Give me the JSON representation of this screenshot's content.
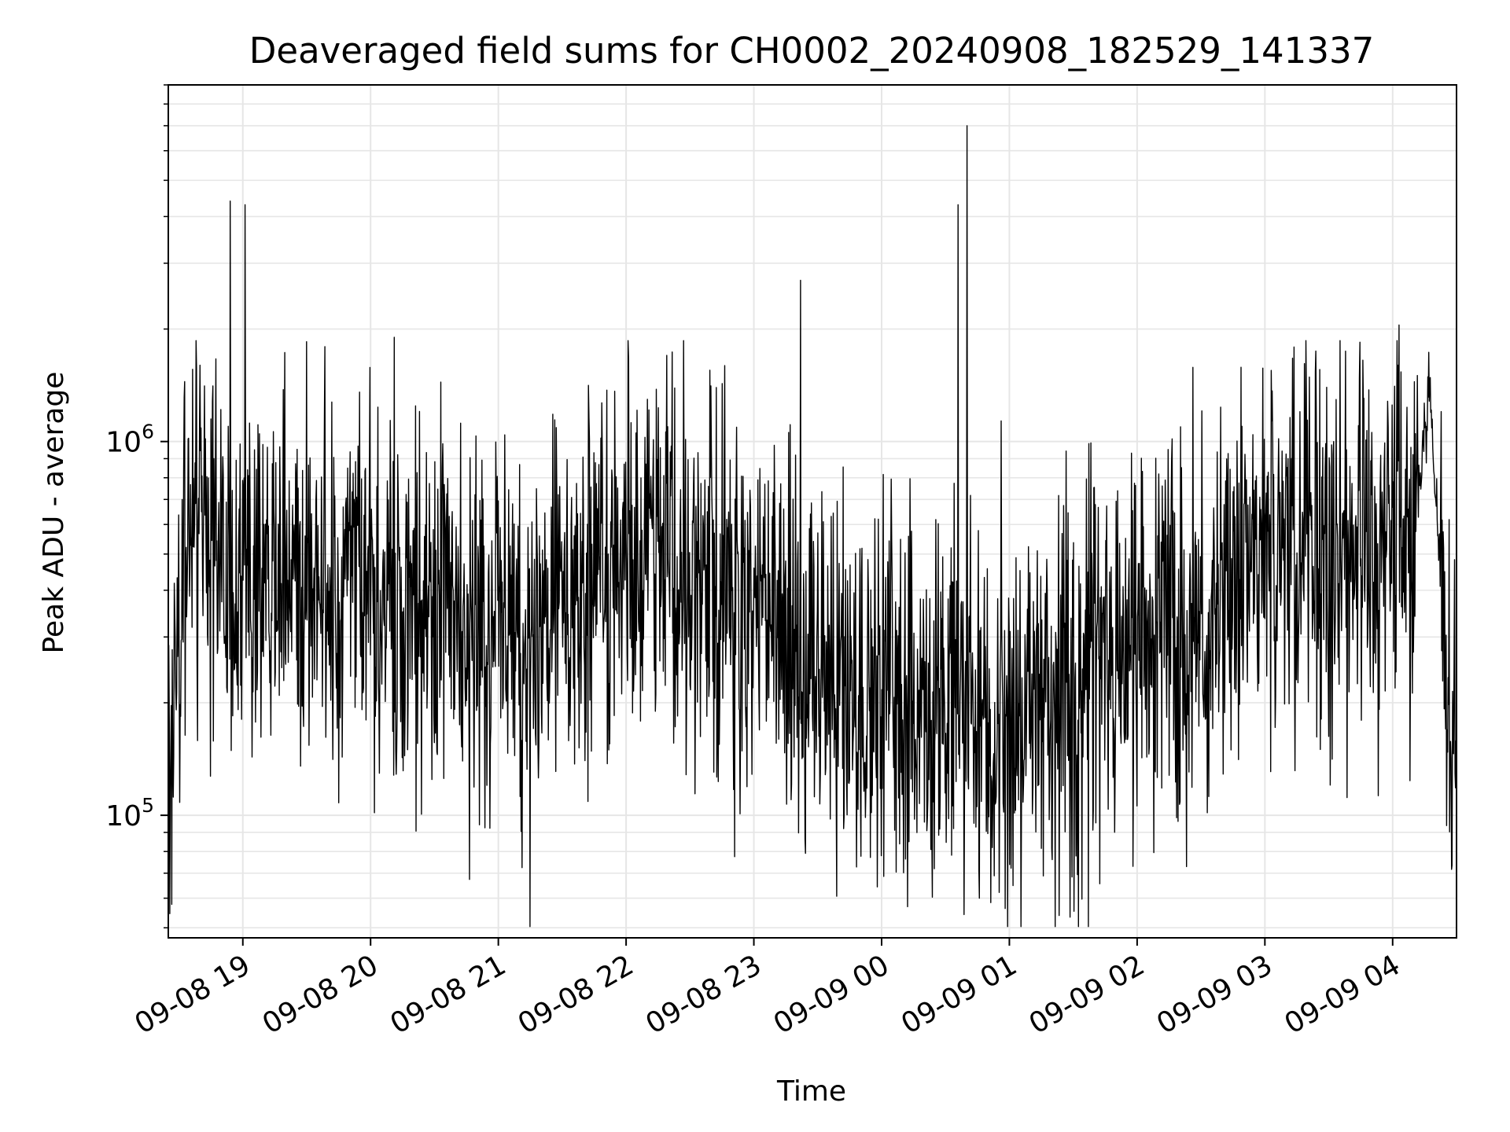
{
  "chart_data": {
    "type": "line",
    "title": "Deaveraged field sums for CH0002_20240908_182529_141337",
    "xlabel": "Time",
    "ylabel": "Peak ADU - average",
    "x_ticks": [
      "09-08 19",
      "09-08 20",
      "09-08 21",
      "09-08 22",
      "09-08 23",
      "09-09 00",
      "09-09 01",
      "09-09 02",
      "09-09 03",
      "09-09 04"
    ],
    "y_ticks": [
      {
        "base": "10",
        "exp": "5",
        "value": 100000
      },
      {
        "base": "10",
        "exp": "6",
        "value": 1000000
      }
    ],
    "y_scale": "log",
    "ylim": [
      47000,
      9000000
    ],
    "xlim": [
      "2024-09-08 18:25",
      "2024-09-09 04:30"
    ],
    "grid": true,
    "line_color": "#000000",
    "grid_color": "#e6e6e6",
    "series": [
      {
        "x_start": "2024-09-08 18:25",
        "x_end": "2024-09-09 04:30",
        "trend_knots": [
          [
            "2024-09-08 18:25",
            150000
          ],
          [
            "2024-09-08 18:35",
            600000
          ],
          [
            "2024-09-08 19:00",
            450000
          ],
          [
            "2024-09-08 20:00",
            400000
          ],
          [
            "2024-09-08 20:45",
            300000
          ],
          [
            "2024-09-08 21:15",
            300000
          ],
          [
            "2024-09-08 22:00",
            500000
          ],
          [
            "2024-09-08 22:45",
            450000
          ],
          [
            "2024-09-08 23:30",
            250000
          ],
          [
            "2024-09-09 00:30",
            180000
          ],
          [
            "2024-09-09 01:30",
            180000
          ],
          [
            "2024-09-09 02:00",
            300000
          ],
          [
            "2024-09-09 02:30",
            300000
          ],
          [
            "2024-09-09 03:00",
            500000
          ],
          [
            "2024-09-09 04:10",
            550000
          ],
          [
            "2024-09-09 04:17",
            1400000
          ],
          [
            "2024-09-09 04:23",
            400000
          ],
          [
            "2024-09-09 04:30",
            120000
          ]
        ],
        "spikes": [
          [
            "2024-09-08 18:54",
            4400000
          ],
          [
            "2024-09-08 19:01",
            4300000
          ],
          [
            "2024-09-08 20:11",
            1900000
          ],
          [
            "2024-09-08 19:30",
            1850000
          ],
          [
            "2024-09-08 23:22",
            2700000
          ],
          [
            "2024-09-09 00:36",
            4300000
          ],
          [
            "2024-09-09 00:40",
            7000000
          ],
          [
            "2024-09-09 04:03",
            2050000
          ],
          [
            "2024-09-08 22:19",
            1700000
          ],
          [
            "2024-09-09 03:03",
            1550000
          ],
          [
            "2024-09-08 18:40",
            1600000
          ]
        ]
      }
    ]
  }
}
